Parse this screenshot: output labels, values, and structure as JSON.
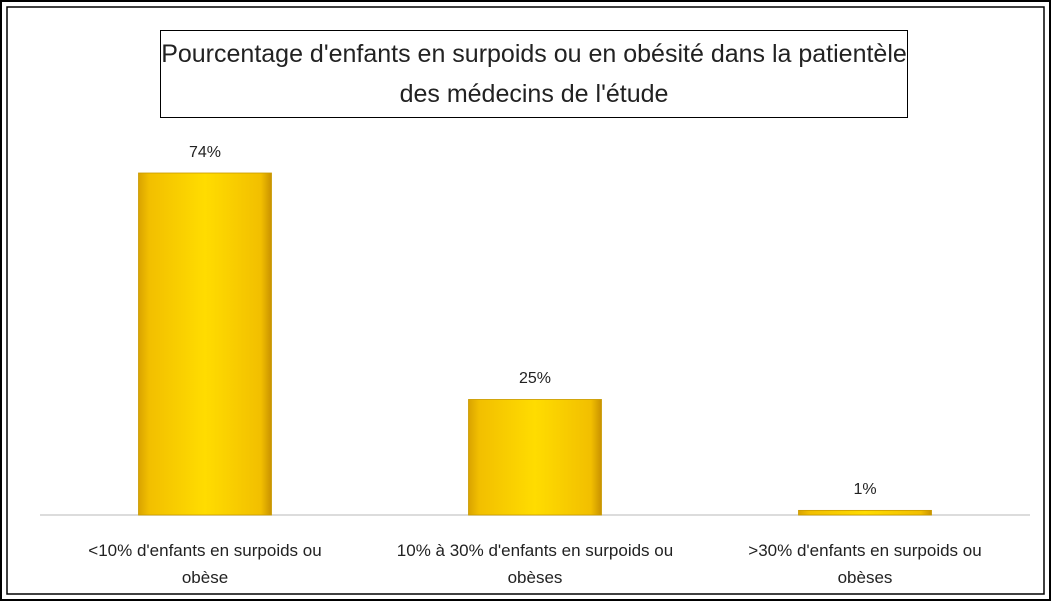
{
  "chart_data": {
    "type": "bar",
    "title": "Pourcentage d'enfants en surpoids ou en obésité dans la patientèle des médecins de l'étude",
    "categories": [
      "<10% d'enfants en surpoids ou obèse",
      "10% à 30% d'enfants en surpoids ou obèses",
      ">30% d'enfants en surpoids ou obèses"
    ],
    "values": [
      74,
      25,
      1
    ],
    "value_labels": [
      "74%",
      "25%",
      "1%"
    ],
    "color": "#ffd700"
  }
}
